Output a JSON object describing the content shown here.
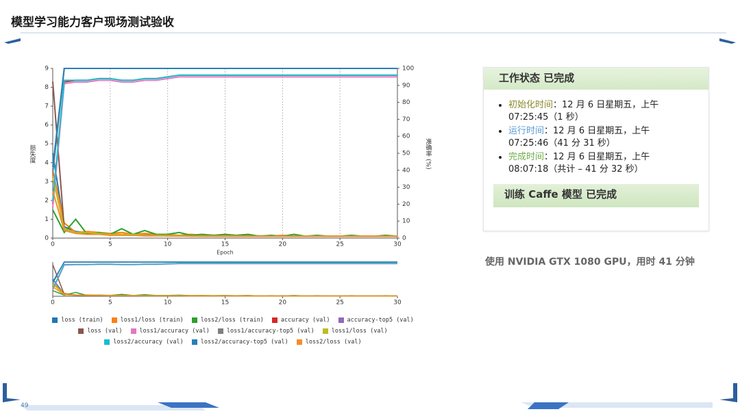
{
  "header": {
    "title": "模型学习能力客户现场测试验收"
  },
  "chart_data": {
    "type": "line",
    "xlabel": "Epoch",
    "ylabel": "损失度",
    "y2label": "准确率 (%)",
    "x": [
      0,
      1,
      2,
      3,
      4,
      5,
      6,
      7,
      8,
      9,
      10,
      11,
      12,
      13,
      14,
      15,
      16,
      17,
      18,
      19,
      20,
      21,
      22,
      23,
      24,
      25,
      26,
      27,
      28,
      29,
      30
    ],
    "xlim": [
      0,
      30
    ],
    "xticks": [
      0,
      5,
      10,
      15,
      20,
      25,
      30
    ],
    "ylim": [
      0,
      9
    ],
    "yticks": [
      0,
      1,
      2,
      3,
      4,
      5,
      6,
      7,
      8,
      9
    ],
    "y2lim": [
      0,
      100
    ],
    "y2ticks": [
      0,
      10,
      20,
      30,
      40,
      50,
      60,
      70,
      80,
      90,
      100
    ],
    "grid": "x",
    "series": [
      {
        "name": "loss (train)",
        "color": "#1f77b4",
        "values": [
          4.5,
          0.6,
          0.35,
          0.3,
          0.25,
          0.22,
          0.2,
          0.18,
          0.17,
          0.16,
          0.15,
          0.14,
          0.14,
          0.13,
          0.13,
          0.12,
          0.12,
          0.12,
          0.12,
          0.11,
          0.11,
          0.11,
          0.11,
          0.11,
          0.1,
          0.1,
          0.1,
          0.1,
          0.1,
          0.1,
          0.1
        ]
      },
      {
        "name": "loss1/loss (train)",
        "color": "#ff7f0e",
        "values": [
          3.6,
          0.8,
          0.3,
          0.35,
          0.3,
          0.25,
          0.3,
          0.2,
          0.25,
          0.2,
          0.2,
          0.15,
          0.2,
          0.15,
          0.15,
          0.15,
          0.1,
          0.15,
          0.1,
          0.1,
          0.15,
          0.1,
          0.1,
          0.1,
          0.1,
          0.1,
          0.1,
          0.1,
          0.1,
          0.1,
          0.1
        ]
      },
      {
        "name": "loss2/loss (train)",
        "color": "#2ca02c",
        "values": [
          1.5,
          0.3,
          1.0,
          0.2,
          0.3,
          0.2,
          0.5,
          0.2,
          0.4,
          0.2,
          0.2,
          0.3,
          0.15,
          0.2,
          0.15,
          0.2,
          0.15,
          0.2,
          0.1,
          0.15,
          0.1,
          0.2,
          0.1,
          0.15,
          0.1,
          0.1,
          0.15,
          0.1,
          0.1,
          0.15,
          0.1
        ]
      },
      {
        "name": "accuracy (val)",
        "color": "#d62728",
        "axis": "y2",
        "values": [
          20,
          92,
          93,
          93,
          94,
          94,
          93,
          93,
          94,
          94,
          95,
          96,
          96,
          96,
          96,
          96,
          96,
          96,
          96,
          96,
          96,
          96,
          96,
          96,
          96,
          96,
          96,
          96,
          96,
          96,
          96
        ]
      },
      {
        "name": "accuracy-top5 (val)",
        "color": "#9467bd",
        "axis": "y2",
        "values": [
          40,
          100,
          100,
          100,
          100,
          100,
          100,
          100,
          100,
          100,
          100,
          100,
          100,
          100,
          100,
          100,
          100,
          100,
          100,
          100,
          100,
          100,
          100,
          100,
          100,
          100,
          100,
          100,
          100,
          100,
          100
        ]
      },
      {
        "name": "loss (val)",
        "color": "#8c564b",
        "values": [
          8.3,
          0.5,
          0.3,
          0.25,
          0.2,
          0.2,
          0.2,
          0.15,
          0.15,
          0.15,
          0.12,
          0.12,
          0.12,
          0.1,
          0.1,
          0.1,
          0.1,
          0.1,
          0.1,
          0.1,
          0.1,
          0.1,
          0.1,
          0.1,
          0.1,
          0.1,
          0.1,
          0.1,
          0.1,
          0.1,
          0.1
        ]
      },
      {
        "name": "loss1/accuracy (val)",
        "color": "#e377c2",
        "axis": "y2",
        "values": [
          18,
          91,
          92,
          92,
          93,
          93,
          92,
          92,
          93,
          93,
          94,
          95,
          95,
          95,
          95,
          95,
          95,
          95,
          95,
          95,
          95,
          95,
          95,
          95,
          95,
          95,
          95,
          95,
          95,
          95,
          95
        ]
      },
      {
        "name": "loss1/accuracy-top5 (val)",
        "color": "#7f7f7f",
        "axis": "y2",
        "values": [
          38,
          100,
          100,
          100,
          100,
          100,
          100,
          100,
          100,
          100,
          100,
          100,
          100,
          100,
          100,
          100,
          100,
          100,
          100,
          100,
          100,
          100,
          100,
          100,
          100,
          100,
          100,
          100,
          100,
          100,
          100
        ]
      },
      {
        "name": "loss1/loss (val)",
        "color": "#bcbd22",
        "values": [
          3.2,
          0.5,
          0.3,
          0.3,
          0.25,
          0.2,
          0.2,
          0.2,
          0.15,
          0.15,
          0.15,
          0.15,
          0.12,
          0.12,
          0.12,
          0.12,
          0.12,
          0.1,
          0.1,
          0.1,
          0.1,
          0.1,
          0.1,
          0.1,
          0.1,
          0.1,
          0.1,
          0.1,
          0.1,
          0.1,
          0.1
        ]
      },
      {
        "name": "loss2/accuracy (val)",
        "color": "#17becf",
        "axis": "y2",
        "values": [
          22,
          93,
          93,
          93,
          94,
          94,
          93,
          93,
          94,
          94,
          95,
          96,
          96,
          96,
          96,
          96,
          96,
          96,
          96,
          96,
          96,
          96,
          96,
          96,
          96,
          96,
          96,
          96,
          96,
          96,
          96
        ]
      },
      {
        "name": "loss2/accuracy-top5 (val)",
        "color": "#2a7fb8",
        "axis": "y2",
        "values": [
          42,
          100,
          100,
          100,
          100,
          100,
          100,
          100,
          100,
          100,
          100,
          100,
          100,
          100,
          100,
          100,
          100,
          100,
          100,
          100,
          100,
          100,
          100,
          100,
          100,
          100,
          100,
          100,
          100,
          100,
          100
        ]
      },
      {
        "name": "loss2/loss (val)",
        "color": "#f28e2b",
        "values": [
          2.5,
          0.4,
          0.25,
          0.2,
          0.2,
          0.15,
          0.15,
          0.15,
          0.12,
          0.12,
          0.12,
          0.12,
          0.1,
          0.1,
          0.1,
          0.1,
          0.1,
          0.1,
          0.1,
          0.1,
          0.1,
          0.1,
          0.1,
          0.1,
          0.1,
          0.1,
          0.1,
          0.1,
          0.1,
          0.1,
          0.1
        ]
      }
    ]
  },
  "panel": {
    "status_title": "工作状态 已完成",
    "items": [
      {
        "label": "初始化时间",
        "text": "：12 月 6 日星期五，上午 07:25:45（1 秒）"
      },
      {
        "label": "运行时间",
        "text": "：12 月 6 日星期五，上午 07:25:46（41 分 31 秒）"
      },
      {
        "label": "完成时间",
        "text": "：12 月 6 日星期五，上午 08:07:18（共计 – 41 分 32 秒）"
      }
    ],
    "task": "训练 Caffe 模型 已完成"
  },
  "caption": "使用 NVIDIA GTX 1080 GPU，用时 41 分钟",
  "page_number": "49"
}
